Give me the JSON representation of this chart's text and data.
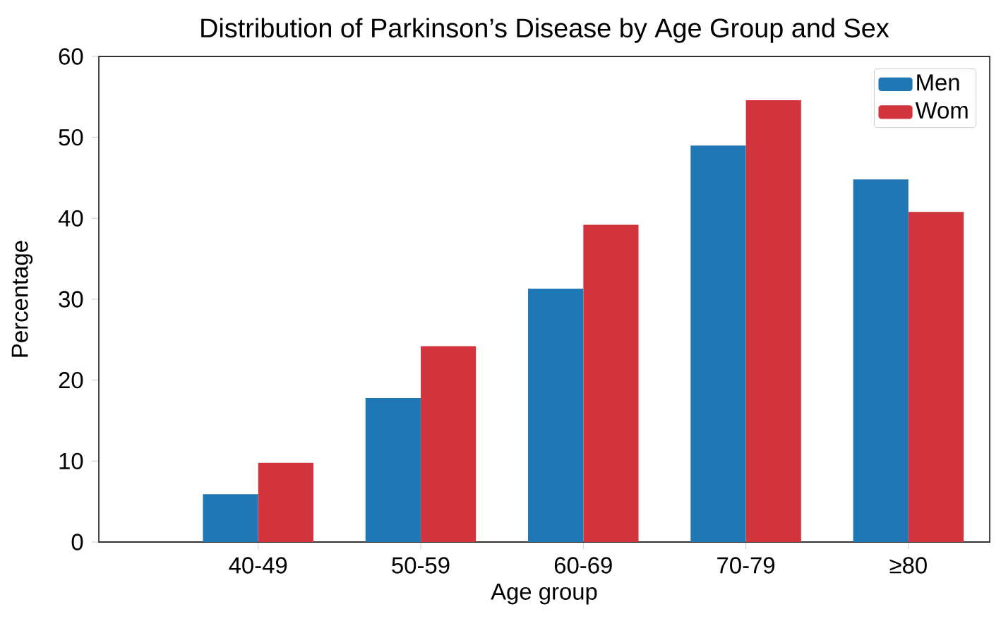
{
  "chart_data": {
    "type": "bar",
    "title": "Distribution of Parkinson’s Disease by Age Group and Sex",
    "xlabel": "Age group",
    "ylabel": "Percentage",
    "categories": [
      "40-49",
      "50-59",
      "60-69",
      "70-79",
      "≥80"
    ],
    "series": [
      {
        "name": "Men",
        "color": "#1f77b4",
        "values": [
          5.9,
          17.8,
          31.3,
          49.0,
          44.8
        ]
      },
      {
        "name": "Wom",
        "color": "#d1343d",
        "values": [
          9.8,
          24.2,
          39.2,
          54.6,
          40.8
        ]
      }
    ],
    "ylim": [
      0,
      60
    ],
    "yticks": [
      0,
      10,
      20,
      30,
      40,
      50,
      60
    ],
    "grid": false,
    "legend": "top right"
  }
}
